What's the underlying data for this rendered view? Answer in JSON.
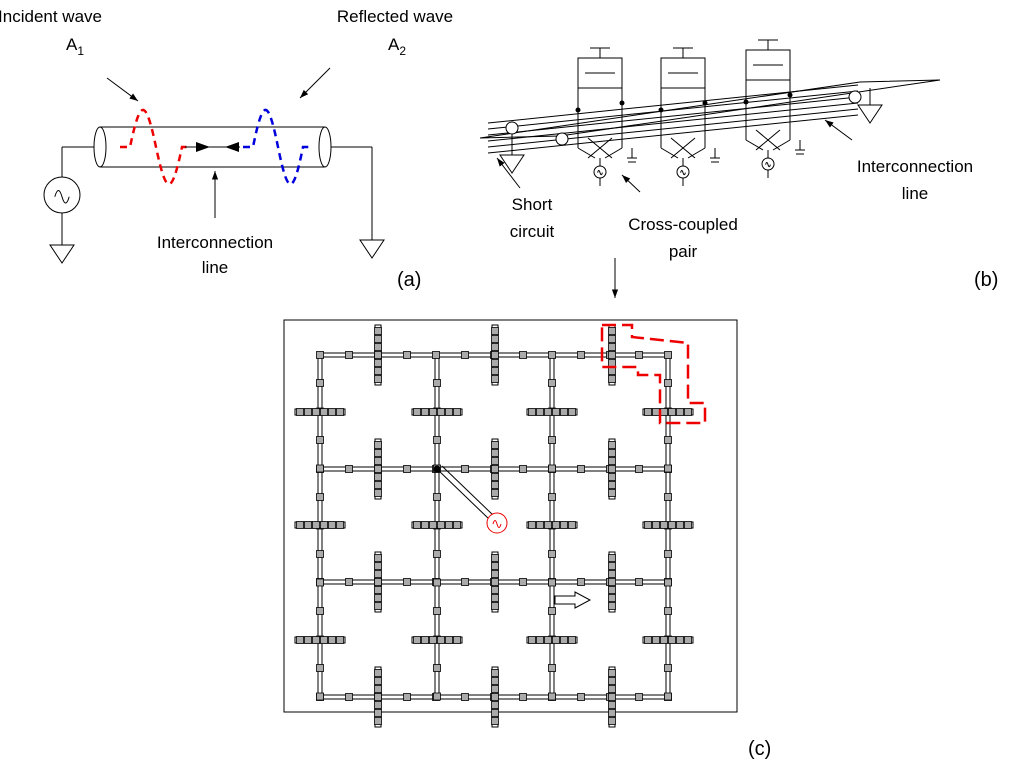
{
  "panel_a": {
    "incident_label": "Incident wave",
    "incident_symbol": {
      "base": "A",
      "sub": "1"
    },
    "reflected_label": "Reflected wave",
    "reflected_symbol": {
      "base": "A",
      "sub": "2"
    },
    "line_label": [
      "Interconnection",
      "line"
    ],
    "tag": "(a)"
  },
  "panel_b": {
    "short_label": [
      "Short",
      "circuit"
    ],
    "pair_label": [
      "Cross-coupled",
      "pair"
    ],
    "line_label": [
      "Interconnection",
      "line"
    ],
    "tag": "(b)"
  },
  "panel_c": {
    "tag": "(c)"
  }
}
